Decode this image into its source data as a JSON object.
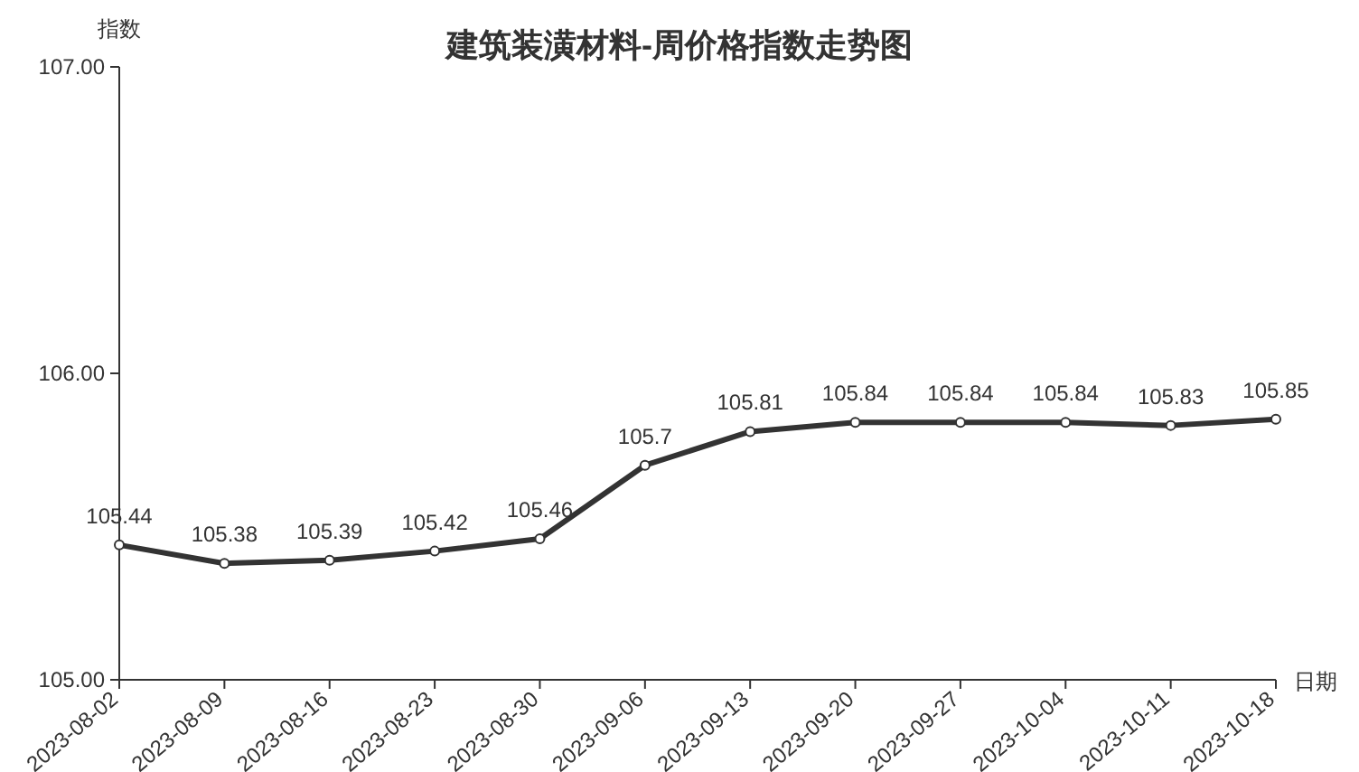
{
  "chart_data": {
    "type": "line",
    "title": "建筑装潢材料-周价格指数走势图",
    "xlabel": "日期",
    "ylabel": "指数",
    "categories": [
      "2023-08-02",
      "2023-08-09",
      "2023-08-16",
      "2023-08-23",
      "2023-08-30",
      "2023-09-06",
      "2023-09-13",
      "2023-09-20",
      "2023-09-27",
      "2023-10-04",
      "2023-10-11",
      "2023-10-18"
    ],
    "series": [
      {
        "color": "#333333",
        "values": [
          105.44,
          105.38,
          105.39,
          105.42,
          105.46,
          105.7,
          105.81,
          105.84,
          105.84,
          105.84,
          105.83,
          105.85
        ]
      }
    ],
    "ylim": [
      105,
      107
    ],
    "yticks": [
      {
        "value": 105,
        "label": "105.00"
      },
      {
        "value": 106,
        "label": "106.00"
      },
      {
        "value": 107,
        "label": "107.00"
      }
    ],
    "data_labels": true,
    "marker": "circle",
    "grid": false
  }
}
